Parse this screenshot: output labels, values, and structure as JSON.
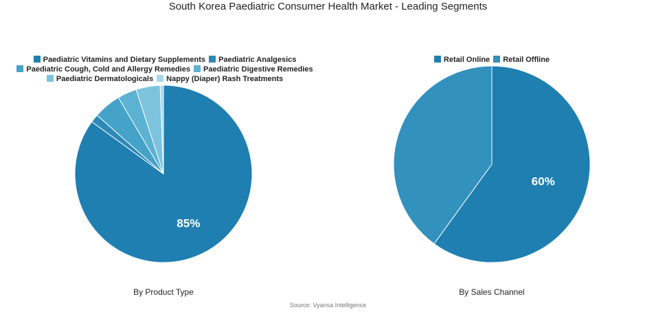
{
  "page": {
    "title": "South Korea Paediatric Consumer Health Market - Leading Segments",
    "source": "Source: Vyansa Intelligence"
  },
  "chart_data": [
    {
      "type": "pie",
      "caption": "By Product Type",
      "legend_position": "top",
      "labels": [
        "Paediatric Vitamins and Dietary Supplements",
        "Paediatric Analgesics",
        "Paediatric Cough, Cold and Allergy Remedies",
        "Paediatric Digestive Remedies",
        "Paediatric Dermatologicals",
        "Nappy (Diaper) Rash Treatments"
      ],
      "values": [
        85,
        1.5,
        5,
        3.5,
        4.4,
        0.6
      ],
      "colors": [
        "#1f7fb0",
        "#2d8ab8",
        "#45a2c8",
        "#5cb2d2",
        "#7cc4de",
        "#a6d8ea"
      ],
      "data_labels": [
        "85%",
        "",
        "",
        "",
        "",
        ""
      ]
    },
    {
      "type": "pie",
      "caption": "By Sales Channel",
      "legend_position": "top",
      "labels": [
        "Retail Online",
        "Retail Offline"
      ],
      "values": [
        60,
        40
      ],
      "colors": [
        "#1f7fb0",
        "#3291bd"
      ],
      "data_labels": [
        "60%",
        ""
      ]
    }
  ]
}
